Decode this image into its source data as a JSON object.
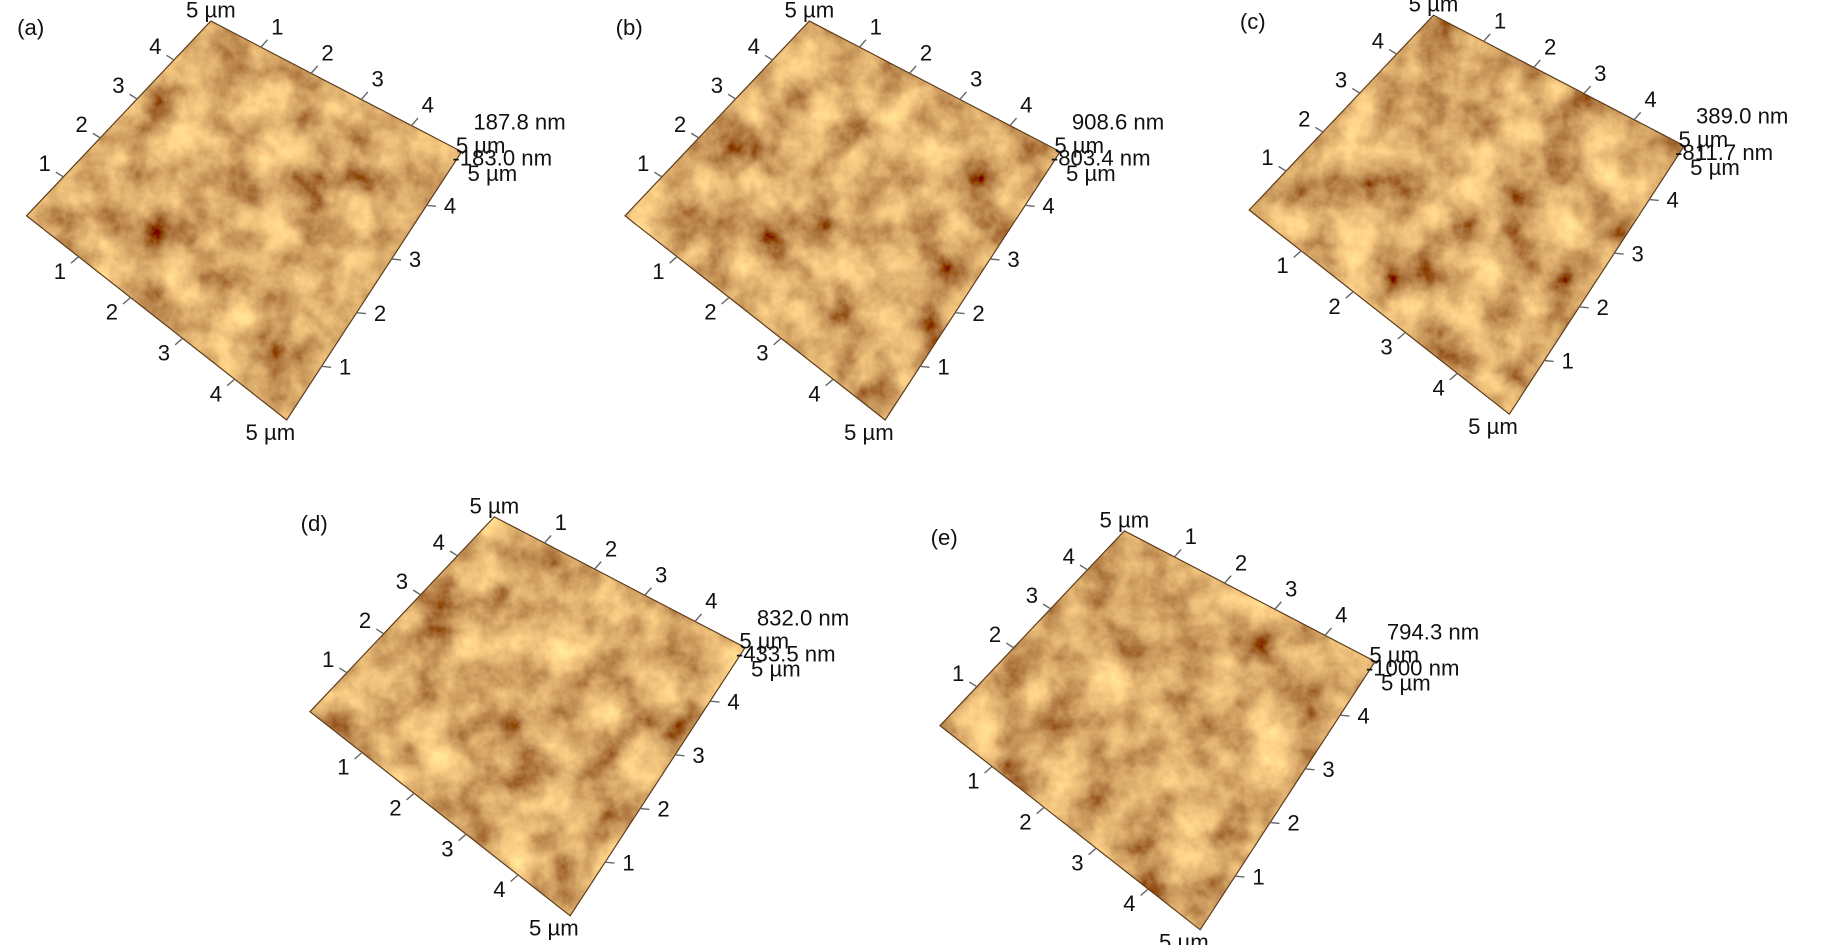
{
  "panels": [
    {
      "label": "(a)",
      "z_max": "187.8 nm",
      "z_min": "-183.0 nm",
      "length": "5 µm",
      "ticks": [
        "1",
        "2",
        "3",
        "4"
      ]
    },
    {
      "label": "(b)",
      "z_max": "908.6 nm",
      "z_min": "-803.4 nm",
      "length": "5 µm",
      "ticks": [
        "1",
        "2",
        "3",
        "4"
      ]
    },
    {
      "label": "(c)",
      "z_max": "389.0 nm",
      "z_min": "-811.7 nm",
      "length": "5 µm",
      "ticks": [
        "1",
        "2",
        "3",
        "4"
      ]
    },
    {
      "label": "(d)",
      "z_max": "832.0 nm",
      "z_min": "-433.5 nm",
      "length": "5 µm",
      "ticks": [
        "1",
        "2",
        "3",
        "4"
      ]
    },
    {
      "label": "(e)",
      "z_max": "794.3 nm",
      "z_min": "-1000 nm",
      "length": "5 µm",
      "ticks": [
        "1",
        "2",
        "3",
        "4"
      ]
    }
  ]
}
